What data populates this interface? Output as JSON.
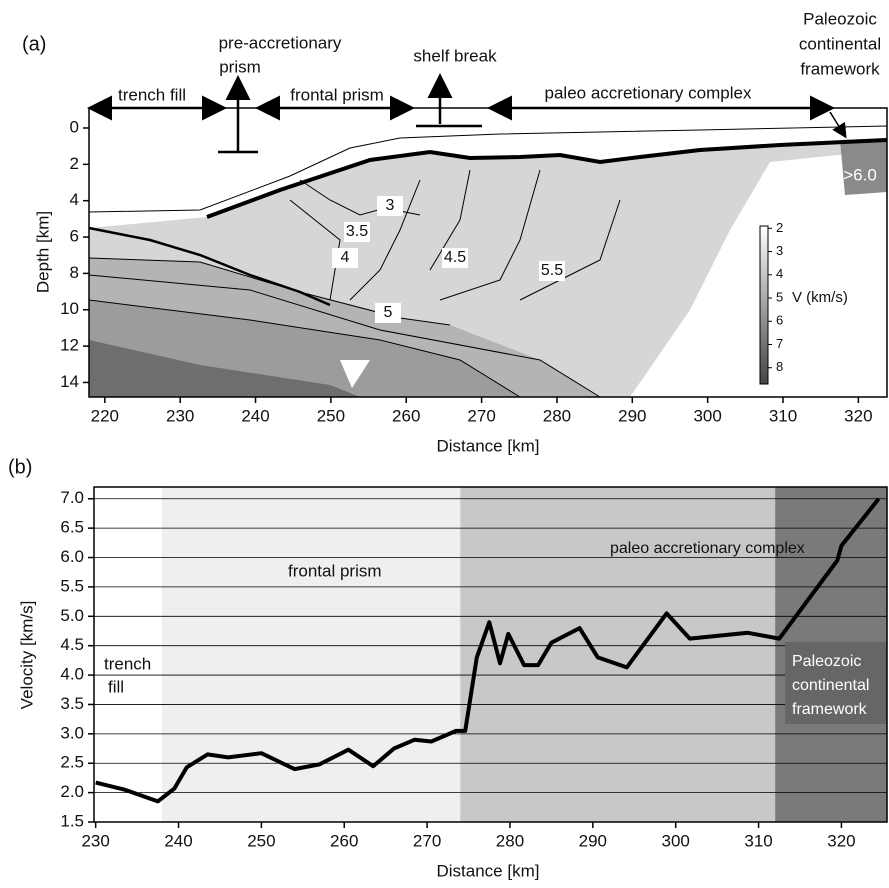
{
  "chart_data": [
    {
      "type": "section",
      "panel_label": "(a)",
      "x_label": "Distance [km]",
      "y_label": "Depth [km]",
      "xlim": [
        217.9,
        323.8
      ],
      "ylim": [
        -1.1,
        14.8
      ],
      "y_inverted": true,
      "xticks": [
        220,
        230,
        240,
        250,
        260,
        270,
        280,
        290,
        300,
        310,
        320
      ],
      "yticks": [
        0,
        2,
        4,
        6,
        8,
        10,
        12,
        14
      ],
      "annotations": [
        [
          "trench fill"
        ],
        [
          "pre-accretionary",
          "prism"
        ],
        [
          "frontal prism"
        ],
        [
          "shelf break"
        ],
        [
          "paleo accretionary complex"
        ],
        [
          "Paleozoic",
          "continental",
          "framework"
        ]
      ],
      "contour_labels": [
        3,
        3.5,
        4,
        4.5,
        5,
        5.5
      ],
      "max_label": ">6.0",
      "colorbar": {
        "label": "V (km/s)",
        "lim": [
          1.9,
          8.7
        ],
        "ticks": [
          2,
          3,
          4,
          5,
          6,
          7,
          8
        ]
      }
    },
    {
      "type": "line",
      "panel_label": "(b)",
      "x_label": "Distance [km]",
      "y_label": "Velocity [km/s]",
      "xlim": [
        229.8,
        325.5
      ],
      "ylim": [
        1.5,
        7.2
      ],
      "grid": true,
      "color": "#000000",
      "xticks": [
        230,
        240,
        250,
        260,
        270,
        280,
        290,
        300,
        310,
        320
      ],
      "yticks": [
        {
          "value": 7,
          "label": "7.0"
        },
        6.5,
        {
          "value": 6,
          "label": "6.0"
        },
        5.5,
        {
          "value": 5,
          "label": "5.0"
        },
        4.5,
        {
          "value": 4,
          "label": "4.0"
        },
        3.5,
        {
          "value": 3,
          "label": "3.0"
        },
        2.5,
        {
          "value": 2,
          "label": "2.0"
        },
        1.5
      ],
      "regions": [
        {
          "label": [
            "trench",
            "fill"
          ],
          "x0": 229.8,
          "x1": 238,
          "color": "#ffffff"
        },
        {
          "label": [
            "frontal prism"
          ],
          "x0": 238,
          "x1": 274,
          "color": "#efefef"
        },
        {
          "label": [
            "paleo accretionary complex"
          ],
          "x0": 274,
          "x1": 312,
          "color": "#c8c8c8"
        },
        {
          "label": [
            "Paleozoic",
            "continental",
            "framework"
          ],
          "x0": 312,
          "x1": 325.5,
          "color": "#7a7a7a"
        }
      ],
      "x": [
        230,
        233.5,
        237.5,
        239.5,
        241,
        243.5,
        246,
        250,
        254,
        257,
        260.5,
        263.5,
        266,
        268.5,
        270.5,
        273.5,
        274.6,
        276,
        277.5,
        278.8,
        279.8,
        281.7,
        283.4,
        285,
        288.4,
        290.6,
        294.1,
        298.9,
        301.7,
        308.7,
        312.5,
        319.5,
        320,
        324.5
      ],
      "values": [
        2.17,
        2.05,
        1.85,
        2.07,
        2.43,
        2.65,
        2.6,
        2.67,
        2.4,
        2.48,
        2.73,
        2.45,
        2.75,
        2.9,
        2.87,
        3.05,
        3.05,
        4.3,
        4.9,
        4.2,
        4.7,
        4.17,
        4.17,
        4.55,
        4.8,
        4.3,
        4.13,
        5.05,
        4.62,
        4.72,
        4.62,
        5.95,
        6.2,
        7.0
      ]
    }
  ]
}
